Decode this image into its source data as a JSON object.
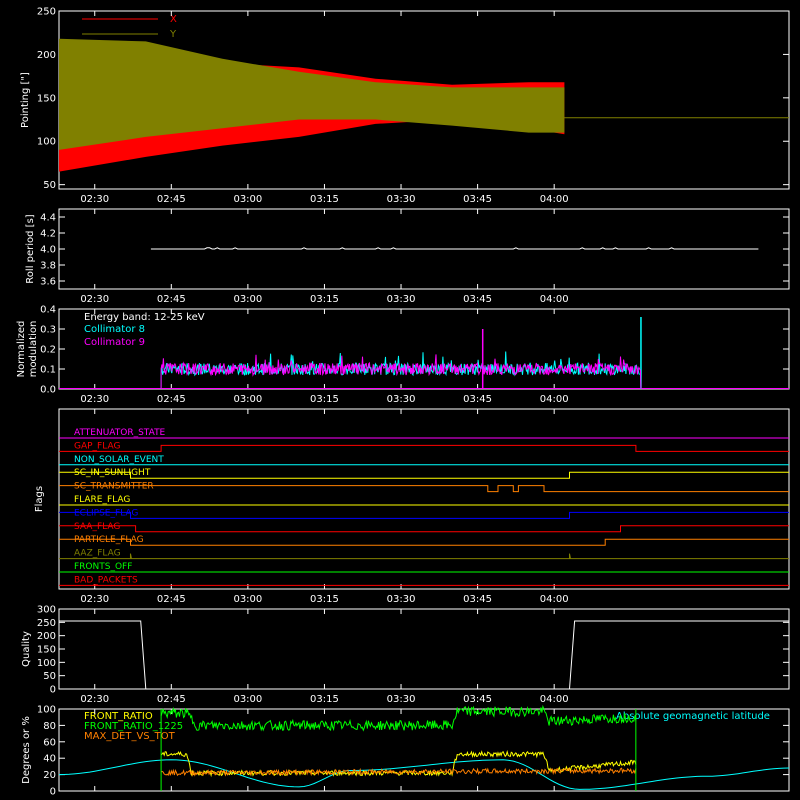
{
  "time_ticks": [
    "02:30",
    "02:45",
    "03:00",
    "03:15",
    "03:30",
    "03:45",
    "04:00"
  ],
  "time_range_min": [
    143,
    286
  ],
  "panels": {
    "pointing": {
      "ylabel": "Pointing [\"]",
      "yticks": [
        "50",
        "100",
        "150",
        "200",
        "250"
      ],
      "ylim": [
        45,
        250
      ],
      "legend": [
        {
          "label": "X",
          "color": "#ff0000"
        },
        {
          "label": "Y",
          "color": "#808000"
        }
      ]
    },
    "roll": {
      "ylabel": "Roll period [s]",
      "yticks": [
        "3.6",
        "3.8",
        "4.0",
        "4.2",
        "4.4"
      ],
      "ylim": [
        3.5,
        4.5
      ]
    },
    "modulation": {
      "ylabel1": "Normalized",
      "ylabel2": "modulation",
      "yticks": [
        "0.0",
        "0.1",
        "0.2",
        "0.3",
        "0.4"
      ],
      "ylim": [
        0,
        0.4
      ],
      "legend": [
        {
          "label": "Energy band: 12-25 keV",
          "color": "#ffffff"
        },
        {
          "label": "Collimator 8",
          "color": "#00ffff"
        },
        {
          "label": "Collimator 9",
          "color": "#ff00ff"
        }
      ]
    },
    "flags": {
      "ylabel": "Flags",
      "items": [
        {
          "label": "ATTENUATOR_STATE",
          "color": "#ff00ff"
        },
        {
          "label": "GAP_FLAG",
          "color": "#ff0000"
        },
        {
          "label": "NON_SOLAR_EVENT",
          "color": "#00ffff"
        },
        {
          "label": "SC_IN_SUNLIGHT",
          "color": "#ffff00"
        },
        {
          "label": "SC_TRANSMITTER",
          "color": "#ff8000"
        },
        {
          "label": "FLARE_FLAG",
          "color": "#ffff00"
        },
        {
          "label": "ECLIPSE_FLAG",
          "color": "#0000ff"
        },
        {
          "label": "SAA_FLAG",
          "color": "#ff0000"
        },
        {
          "label": "PARTICLE_FLAG",
          "color": "#ff8000"
        },
        {
          "label": "AAZ_FLAG",
          "color": "#808000"
        },
        {
          "label": "FRONTS_OFF",
          "color": "#00ff00"
        },
        {
          "label": "BAD_PACKETS",
          "color": "#ff0000"
        }
      ]
    },
    "quality": {
      "ylabel": "Quality",
      "yticks": [
        "0",
        "50",
        "100",
        "150",
        "200",
        "250",
        "300"
      ],
      "ylim": [
        0,
        300
      ]
    },
    "ratio": {
      "ylabel": "Degrees or %",
      "yticks": [
        "0",
        "20",
        "40",
        "60",
        "80",
        "100"
      ],
      "ylim": [
        0,
        100
      ],
      "legend": [
        {
          "label": "FRONT_RATIO",
          "color": "#ffff00"
        },
        {
          "label": "FRONT_RATIO_1225",
          "color": "#00ff00"
        },
        {
          "label": "MAX_DET_VS_TOT",
          "color": "#ff8000"
        }
      ],
      "right_label": {
        "label": "Absolute geomagnetic latitude",
        "color": "#00ffff"
      }
    }
  },
  "chart_data": [
    {
      "type": "line",
      "ylabel": "Pointing [\"]",
      "ylim": [
        45,
        250
      ],
      "x_unit": "minutes after 00:00 UT",
      "series": [
        {
          "name": "X",
          "x": [
            143,
            160,
            175,
            190,
            205,
            220,
            235,
            242
          ],
          "upper": [
            212,
            208,
            190,
            185,
            172,
            165,
            168,
            168
          ],
          "lower": [
            65,
            82,
            95,
            105,
            120,
            125,
            115,
            108
          ]
        },
        {
          "name": "Y",
          "x": [
            143,
            160,
            175,
            190,
            205,
            220,
            235,
            242
          ],
          "upper": [
            218,
            215,
            195,
            180,
            168,
            162,
            162,
            162
          ],
          "lower": [
            90,
            105,
            115,
            125,
            125,
            118,
            110,
            110
          ]
        }
      ],
      "reference_level": 127
    },
    {
      "type": "line",
      "ylabel": "Roll period [s]",
      "ylim": [
        3.5,
        4.5
      ],
      "series": [
        {
          "name": "",
          "x": [
            161,
            280
          ],
          "y": [
            4.0,
            4.0
          ]
        }
      ]
    },
    {
      "type": "line",
      "ylabel": "Normalized modulation",
      "ylim": [
        0,
        0.4
      ],
      "series": [
        {
          "name": "Collimator 8",
          "x": [
            163,
            257
          ],
          "y_mean": 0.1,
          "x_spike": 257,
          "y_spike": 0.36
        },
        {
          "name": "Collimator 9",
          "x": [
            163,
            257
          ],
          "y_mean": 0.1,
          "x_spike": 226,
          "y_spike": 0.3
        }
      ]
    },
    {
      "type": "line",
      "ylabel": "Quality",
      "ylim": [
        0,
        300
      ],
      "series": [
        {
          "name": "",
          "x": [
            143,
            159,
            160,
            243,
            244,
            286
          ],
          "y": [
            255,
            255,
            0,
            0,
            255,
            255
          ]
        }
      ]
    },
    {
      "type": "line",
      "ylabel": "Degrees or %",
      "ylim": [
        0,
        100
      ],
      "series": [
        {
          "name": "FRONT_RATIO",
          "x": [
            163,
            168,
            169,
            220,
            221,
            238,
            239,
            256
          ],
          "y": [
            45,
            45,
            22,
            22,
            45,
            45,
            25,
            35
          ]
        },
        {
          "name": "FRONT_RATIO_1225",
          "x": [
            163,
            168,
            170,
            220,
            221,
            238,
            239,
            256
          ],
          "y": [
            95,
            95,
            80,
            80,
            97,
            97,
            85,
            90
          ]
        },
        {
          "name": "MAX_DET_VS_TOT",
          "x": [
            163,
            256
          ],
          "y": [
            22,
            25
          ]
        },
        {
          "name": "Absolute geomagnetic latitude",
          "x": [
            143,
            165,
            190,
            200,
            230,
            245,
            270,
            286
          ],
          "y": [
            20,
            38,
            5,
            25,
            38,
            2,
            18,
            28
          ]
        }
      ]
    }
  ]
}
